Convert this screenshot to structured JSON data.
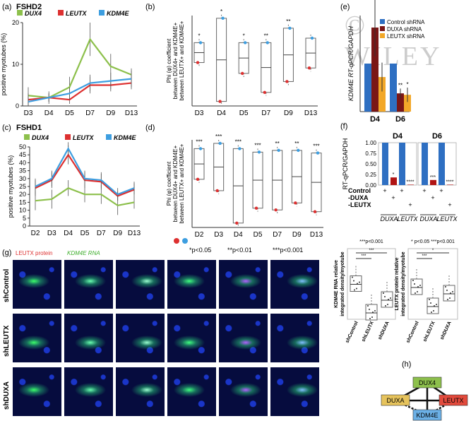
{
  "watermark": "© WILEY",
  "panels": {
    "a": {
      "letter": "(a)",
      "title": "FSHD2"
    },
    "b": {
      "letter": "(b)"
    },
    "c": {
      "letter": "(c)",
      "title": "FSHD1"
    },
    "d": {
      "letter": "(d)",
      "pvals": [
        "*p<0.05",
        "**p<0.01",
        "***p<0.001"
      ]
    },
    "e": {
      "letter": "(e)"
    },
    "f": {
      "letter": "(f)",
      "d4": "D4",
      "d6": "D6",
      "xrow_labels": [
        "Control",
        "-DUXA",
        "-LEUTX"
      ],
      "group_labels": [
        "DUXA",
        "LEUTX"
      ]
    },
    "g": {
      "letter": "(g)",
      "leutx_label": "LEUTX protein",
      "kdm4e_label": "KDM4E RNA",
      "rows": [
        "shControl",
        "shLEUTX",
        "shDUXA"
      ]
    },
    "h": {
      "letter": "(h)",
      "nodes": [
        "DUX4",
        "DUXA",
        "LEUTX",
        "KDM4E"
      ]
    }
  },
  "colors": {
    "DUX4": "#8dc04c",
    "LEUTX": "#dd3030",
    "KDM4E": "#3d9ee0",
    "control_bar": "#2e6fc2",
    "duxa_bar": "#7a1616",
    "leutx_bar": "#f2a829"
  },
  "chart_data": [
    {
      "type": "line",
      "panel": "a",
      "title": "FSHD2",
      "ylabel": "positive myotubes (%)",
      "categories": [
        "D3",
        "D4",
        "D5",
        "D7",
        "D9",
        "D13"
      ],
      "ylim": [
        0,
        20
      ],
      "yticks": [
        0,
        10,
        20
      ],
      "series": [
        {
          "name": "DUX4",
          "values": [
            2.5,
            2,
            4.5,
            16,
            9.5,
            7.5
          ],
          "err": [
            2,
            1.5,
            2.5,
            4,
            3,
            1.5
          ]
        },
        {
          "name": "LEUTX",
          "values": [
            1.5,
            2,
            1.5,
            5,
            5,
            5.5
          ],
          "err": [
            1.5,
            1,
            1,
            2,
            1.5,
            1.5
          ]
        },
        {
          "name": "KDM4E",
          "values": [
            1,
            2,
            3,
            5.5,
            6,
            6.5
          ],
          "err": [
            1,
            1,
            1.5,
            2,
            2,
            2
          ]
        }
      ]
    },
    {
      "type": "box",
      "panel": "b",
      "ylabel": "Phi (φ) coefficient between DUX4+ and KDM4E+ between LEUTX+ and KDM4E+",
      "categories": [
        "D3",
        "D4",
        "D5",
        "D7",
        "D9",
        "D13"
      ],
      "sig": [
        "*",
        "*",
        "*",
        "**",
        "**",
        ""
      ],
      "red": [
        0.48,
        0.05,
        0.36,
        0.15,
        0.27,
        0.42
      ],
      "blue": [
        0.7,
        0.97,
        0.7,
        0.7,
        0.86,
        0.75
      ]
    },
    {
      "type": "line",
      "panel": "c",
      "title": "FSHD1",
      "ylabel": "positive myotubes (%)",
      "categories": [
        "D2",
        "D3",
        "D4",
        "D5",
        "D7",
        "D9",
        "D13"
      ],
      "ylim": [
        0,
        50
      ],
      "yticks": [
        0,
        5,
        10,
        15,
        20,
        25,
        30,
        35,
        40,
        45,
        50
      ],
      "series": [
        {
          "name": "DUX4",
          "values": [
            16,
            17,
            24,
            20,
            20,
            13,
            15
          ],
          "err": [
            6,
            6,
            5,
            5,
            6,
            6,
            4
          ]
        },
        {
          "name": "LEUTX",
          "values": [
            24,
            29,
            45,
            29,
            28,
            19,
            23
          ],
          "err": [
            5,
            5,
            6,
            5,
            5,
            3,
            4
          ]
        },
        {
          "name": "KDM4E",
          "values": [
            25,
            30,
            49,
            30,
            29,
            20,
            24
          ],
          "err": [
            5,
            5,
            4,
            5,
            5,
            4,
            4
          ]
        }
      ]
    },
    {
      "type": "box",
      "panel": "d",
      "ylabel": "Phi (φ) coefficient between DUX4+ and KDM4E+ between LEUTX+ and KDM4E+",
      "categories": [
        "D2",
        "D3",
        "D4",
        "D5",
        "D7",
        "D9",
        "D13"
      ],
      "sig": [
        "***",
        "***",
        "***",
        "***",
        "**",
        "**",
        "***"
      ],
      "red": [
        0.55,
        0.42,
        0.05,
        0.22,
        0.2,
        0.28,
        0.18
      ],
      "blue": [
        0.9,
        0.96,
        0.9,
        0.86,
        0.88,
        0.88,
        0.85
      ]
    },
    {
      "type": "bar",
      "panel": "e",
      "ylabel": "KDM4E RT-qPCR/GAPDH",
      "categories": [
        "D4",
        "D6"
      ],
      "series": [
        {
          "name": "Control shRNA",
          "values": [
            1.0,
            1.0
          ]
        },
        {
          "name": "DUXA shRNA",
          "values": [
            1.75,
            0.38
          ]
        },
        {
          "name": "LEUTX shRNA",
          "values": [
            0.72,
            0.35
          ]
        }
      ],
      "sig": [
        "",
        "",
        "",
        "",
        "**",
        "*"
      ]
    },
    {
      "type": "bar",
      "panel": "f",
      "ylabel": "RT-qPCR/GAPDH",
      "ylim": [
        0,
        1
      ],
      "yticks": [
        "0.00",
        "0.25",
        "0.50",
        "0.75",
        "1.00"
      ],
      "groups": [
        "D4",
        "D6"
      ],
      "values": [
        [
          1.0,
          0.18,
          1.0,
          0.01
        ],
        [
          1.0,
          0.12,
          1.0,
          0.01
        ]
      ],
      "sig": [
        [
          "",
          "*",
          "",
          "****"
        ],
        [
          "",
          "***",
          "",
          "****"
        ]
      ]
    },
    {
      "type": "box",
      "panel": "g-left",
      "ylabel": "KDM4E RNA relative integrated density/myotube",
      "categories": [
        "shControl",
        "shLEUTX",
        "shDUXA"
      ],
      "sig": [
        "***p<0.001"
      ],
      "pairs": [
        "***",
        "***"
      ],
      "medians": [
        0.55,
        0.1,
        0.3
      ]
    },
    {
      "type": "box",
      "panel": "g-right",
      "ylabel": "LEUTX protein relative integrated density/myotube",
      "categories": [
        "shControl",
        "shLEUTX",
        "shDUXA"
      ],
      "sig": [
        "* p<0.05  ***p<0.001"
      ],
      "pairs": [
        "***",
        "*"
      ],
      "medians": [
        0.5,
        0.2,
        0.4
      ]
    }
  ]
}
